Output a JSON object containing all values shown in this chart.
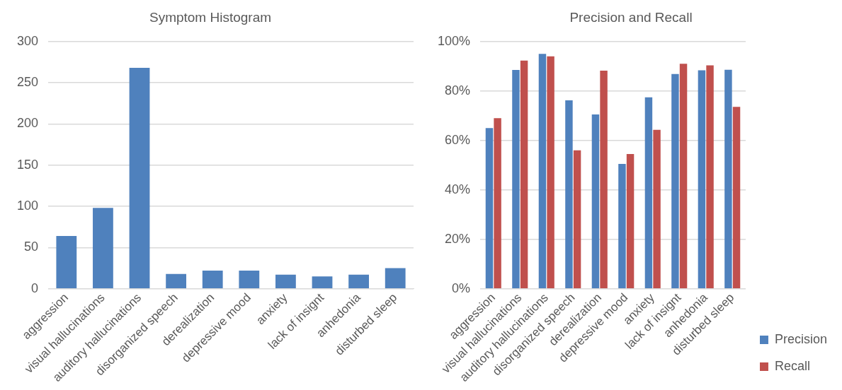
{
  "chart_data": [
    {
      "type": "bar",
      "title": "Symptom Histogram",
      "categories": [
        "aggression",
        "visual hallucinations",
        "auditory hallucinations",
        "disorganized speech",
        "derealization",
        "depressive mood",
        "anxiety",
        "lack of insignt",
        "anhedonia",
        "disturbed sleep"
      ],
      "values": [
        64,
        98,
        268,
        18,
        22,
        22,
        17,
        15,
        17,
        25
      ],
      "color": "#4f81bd",
      "ylim": [
        0,
        300
      ],
      "yticks": [
        0,
        50,
        100,
        150,
        200,
        250,
        300
      ],
      "grid": "y",
      "legend": false
    },
    {
      "type": "bar",
      "title": "Precision and Recall",
      "categories": [
        "aggression",
        "visual hallucinations",
        "auditory hallucinations",
        "disorganized speech",
        "derealization",
        "depressive mood",
        "anxiety",
        "lack of insignt",
        "anhedonia",
        "disturbed sleep"
      ],
      "series": [
        {
          "name": "Precision",
          "color": "#4f81bd",
          "values": [
            65,
            88.5,
            95,
            76.2,
            70.5,
            50.5,
            77.4,
            86.9,
            88.4,
            88.6
          ]
        },
        {
          "name": "Recall",
          "color": "#c0504d",
          "values": [
            69,
            92.3,
            94,
            56,
            88.2,
            54.5,
            64.3,
            91,
            90.4,
            73.6
          ]
        }
      ],
      "ylim": [
        0,
        100
      ],
      "yticks": [
        {
          "value": 0,
          "label": "0%"
        },
        {
          "value": 20,
          "label": "20%"
        },
        {
          "value": 40,
          "label": "40%"
        },
        {
          "value": 60,
          "label": "60%"
        },
        {
          "value": 80,
          "label": "80%"
        },
        {
          "value": 100,
          "label": "100%"
        }
      ],
      "grid": "y",
      "legend": "bottom right"
    }
  ]
}
